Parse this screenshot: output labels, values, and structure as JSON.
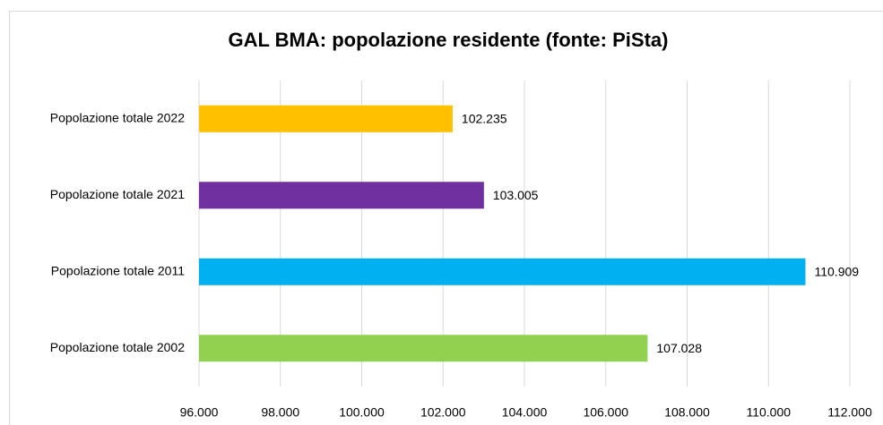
{
  "chart_data": {
    "type": "barh",
    "title": "GAL BMA: popolazione residente (fonte: PiSta)",
    "categories": [
      "Popolazione totale 2022",
      "Popolazione totale 2021",
      "Popolazione totale 2011",
      "Popolazione totale 2002"
    ],
    "values": [
      102235,
      103005,
      110909,
      107028
    ],
    "value_labels": [
      "102.235",
      "103.005",
      "110.909",
      "107.028"
    ],
    "colors": [
      "#ffc000",
      "#7030a0",
      "#00b0f0",
      "#92d050"
    ],
    "xlim": [
      96000,
      112000
    ],
    "xticks": [
      {
        "value": 96000,
        "label": "96.000"
      },
      {
        "value": 98000,
        "label": "98.000"
      },
      {
        "value": 100000,
        "label": "100.000"
      },
      {
        "value": 102000,
        "label": "102.000"
      },
      {
        "value": 104000,
        "label": "104.000"
      },
      {
        "value": 106000,
        "label": "106.000"
      },
      {
        "value": 108000,
        "label": "108.000"
      },
      {
        "value": 110000,
        "label": "110.000"
      },
      {
        "value": 112000,
        "label": "112.000"
      }
    ],
    "grid": true
  }
}
